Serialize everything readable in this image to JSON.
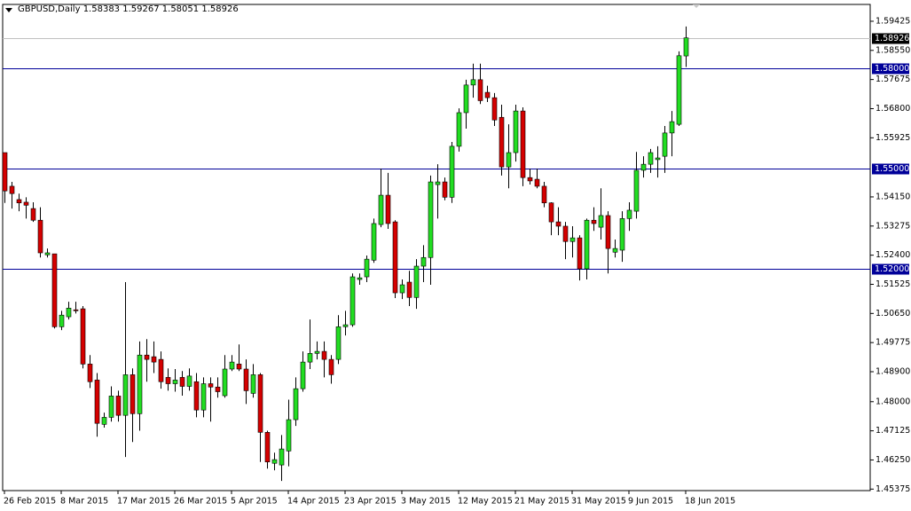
{
  "chart_data": {
    "type": "candlestick",
    "title": "GBPUSD,Daily",
    "categories": [
      "26 Feb 2015",
      null,
      null,
      null,
      null,
      null,
      null,
      null,
      "8 Mar 2015",
      null,
      null,
      null,
      null,
      null,
      null,
      null,
      "17 Mar 2015",
      null,
      null,
      null,
      null,
      null,
      null,
      null,
      "26 Mar 2015",
      null,
      null,
      null,
      null,
      null,
      null,
      null,
      "5 Apr 2015",
      null,
      null,
      null,
      null,
      null,
      null,
      null,
      "14 Apr 2015",
      null,
      null,
      null,
      null,
      null,
      null,
      null,
      "23 Apr 2015",
      null,
      null,
      null,
      null,
      null,
      null,
      null,
      "3 May 2015",
      null,
      null,
      null,
      null,
      null,
      null,
      null,
      "12 May 2015",
      null,
      null,
      null,
      null,
      null,
      null,
      null,
      "21 May 2015",
      null,
      null,
      null,
      null,
      null,
      null,
      null,
      "31 May 2015",
      null,
      null,
      null,
      null,
      null,
      null,
      null,
      "9 Jun 2015",
      null,
      null,
      null,
      null,
      null,
      null,
      null,
      "18 Jun 2015"
    ],
    "open": [
      1.5548,
      1.5447,
      1.5407,
      1.5399,
      1.538,
      1.5345,
      1.5241,
      1.5244,
      1.5025,
      1.5055,
      1.5076,
      1.5079,
      1.4913,
      1.4865,
      1.4732,
      1.4753,
      1.4817,
      1.4759,
      1.4881,
      1.4764,
      1.494,
      1.4935,
      1.4927,
      1.4873,
      1.4854,
      1.4873,
      1.4846,
      1.486,
      1.4775,
      1.4854,
      1.4844,
      1.4818,
      1.4898,
      1.4913,
      1.4898,
      1.4825,
      1.4881,
      1.4708,
      1.4615,
      1.461,
      1.4652,
      1.4746,
      1.4839,
      1.4919,
      1.4945,
      1.4951,
      1.4927,
      1.4927,
      1.5025,
      1.5031,
      1.5167,
      1.5175,
      1.5225,
      1.5332,
      1.542,
      1.534,
      1.5127,
      1.5159,
      1.5113,
      1.5207,
      1.5233,
      1.5452,
      1.546,
      1.5414,
      1.5567,
      1.5668,
      1.5751,
      1.5767,
      1.5729,
      1.5713,
      1.5654,
      1.5505,
      1.5548,
      1.5673,
      1.5473,
      1.5468,
      1.5447,
      1.5397,
      1.534,
      1.5327,
      1.5281,
      1.5292,
      1.5199,
      1.5345,
      1.5324,
      1.5359,
      1.5249,
      1.5255,
      1.535,
      1.5372,
      1.5495,
      1.5513,
      1.5527,
      1.5537,
      1.5607,
      1.5633,
      1.58383
    ],
    "high": [
      1.5548,
      1.546,
      1.5425,
      1.5414,
      1.5399,
      1.5384,
      1.526,
      1.5244,
      1.5073,
      1.51,
      1.51,
      1.5087,
      1.494,
      1.4886,
      1.4767,
      1.4846,
      1.4833,
      1.5159,
      1.49,
      1.4981,
      1.4988,
      1.4981,
      1.4951,
      1.49,
      1.4898,
      1.4892,
      1.49,
      1.4886,
      1.4873,
      1.4873,
      1.4873,
      1.494,
      1.494,
      1.4972,
      1.4927,
      1.4913,
      1.4886,
      1.4713,
      1.4647,
      1.47,
      1.4806,
      1.4873,
      1.4951,
      1.5047,
      1.4981,
      1.4981,
      1.494,
      1.506,
      1.5073,
      1.5185,
      1.5185,
      1.5239,
      1.535,
      1.55,
      1.5487,
      1.5345,
      1.5167,
      1.5193,
      1.5228,
      1.527,
      1.5479,
      1.5513,
      1.5473,
      1.558,
      1.5681,
      1.5767,
      1.5815,
      1.5815,
      1.5749,
      1.5727,
      1.5692,
      1.5633,
      1.5692,
      1.5684,
      1.55,
      1.55,
      1.546,
      1.5399,
      1.5384,
      1.534,
      1.5327,
      1.53,
      1.535,
      1.5384,
      1.5441,
      1.5372,
      1.5287,
      1.5372,
      1.5399,
      1.555,
      1.5537,
      1.5559,
      1.5567,
      1.5628,
      1.5673,
      1.5852,
      1.59267
    ],
    "low": [
      1.5397,
      1.538,
      1.5372,
      1.535,
      1.534,
      1.5233,
      1.5233,
      1.502,
      1.5015,
      1.5047,
      1.5065,
      1.49,
      1.4841,
      1.4695,
      1.4722,
      1.474,
      1.474,
      1.4634,
      1.4679,
      1.4713,
      1.486,
      1.4886,
      1.4839,
      1.4833,
      1.483,
      1.4818,
      1.4833,
      1.4753,
      1.4753,
      1.474,
      1.4812,
      1.4812,
      1.4892,
      1.4892,
      1.4793,
      1.4812,
      1.4619,
      1.4599,
      1.4594,
      1.4562,
      1.4606,
      1.4727,
      1.483,
      1.4898,
      1.4927,
      1.4873,
      1.4854,
      1.4913,
      1.4999,
      1.5025,
      1.5151,
      1.5159,
      1.5217,
      1.5324,
      1.5319,
      1.5111,
      1.5108,
      1.5087,
      1.5079,
      1.5159,
      1.5151,
      1.535,
      1.5405,
      1.5397,
      1.5551,
      1.562,
      1.5713,
      1.5694,
      1.57,
      1.5628,
      1.5479,
      1.5441,
      1.5521,
      1.5447,
      1.5452,
      1.5441,
      1.5384,
      1.53,
      1.53,
      1.5228,
      1.5233,
      1.5164,
      1.5167,
      1.5313,
      1.5287,
      1.5185,
      1.5233,
      1.522,
      1.5313,
      1.535,
      1.5473,
      1.5487,
      1.5473,
      1.5487,
      1.5537,
      1.5628,
      1.58051
    ],
    "close": [
      1.5433,
      1.5425,
      1.5397,
      1.539,
      1.5345,
      1.5247,
      1.5247,
      1.5025,
      1.506,
      1.5081,
      1.5073,
      1.4913,
      1.486,
      1.4735,
      1.4753,
      1.4817,
      1.4759,
      1.4881,
      1.4764,
      1.494,
      1.4927,
      1.4919,
      1.486,
      1.4854,
      1.4865,
      1.4846,
      1.4877,
      1.4775,
      1.4854,
      1.4844,
      1.483,
      1.4898,
      1.4919,
      1.4898,
      1.4833,
      1.4881,
      1.4708,
      1.4619,
      1.4626,
      1.4658,
      1.4746,
      1.4839,
      1.4919,
      1.4945,
      1.4951,
      1.4927,
      1.4881,
      1.5025,
      1.5031,
      1.5175,
      1.5172,
      1.5228,
      1.5335,
      1.542,
      1.5335,
      1.5127,
      1.5151,
      1.5113,
      1.5207,
      1.5233,
      1.546,
      1.546,
      1.5414,
      1.5567,
      1.5668,
      1.5751,
      1.5767,
      1.5704,
      1.5713,
      1.5646,
      1.5505,
      1.5548,
      1.5673,
      1.5473,
      1.5463,
      1.5447,
      1.5397,
      1.534,
      1.5327,
      1.5281,
      1.5292,
      1.5199,
      1.5345,
      1.5335,
      1.5359,
      1.526,
      1.526,
      1.535,
      1.5375,
      1.5495,
      1.5513,
      1.5548,
      1.5532,
      1.5607,
      1.5641,
      1.5839,
      1.58926
    ],
    "up_color": "#22dd22",
    "down_color": "#d40000",
    "ylim": [
      1.4533,
      1.5993
    ],
    "yticks": [
      1.59425,
      {
        "value": 1.5855,
        "label": "1.58550"
      },
      1.57675,
      {
        "value": 1.568,
        "label": "1.56800"
      },
      1.55925,
      {
        "value": 1.5415,
        "label": "1.54150"
      },
      1.53275,
      {
        "value": 1.524,
        "label": "1.52400"
      },
      1.51525,
      {
        "value": 1.5065,
        "label": "1.50650"
      },
      1.49775,
      {
        "value": 1.489,
        "label": "1.48900"
      },
      {
        "value": 1.48,
        "label": "1.48000"
      },
      1.47125,
      {
        "value": 1.4625,
        "label": "1.46250"
      },
      1.45375
    ],
    "hlines": [
      {
        "value": 1.58,
        "label": "1.58000"
      },
      {
        "value": 1.55,
        "label": "1.55000"
      },
      {
        "value": 1.52,
        "label": "1.52000"
      }
    ],
    "hline_color": "#000099",
    "price_line_color": "#c0c0c0"
  }
}
